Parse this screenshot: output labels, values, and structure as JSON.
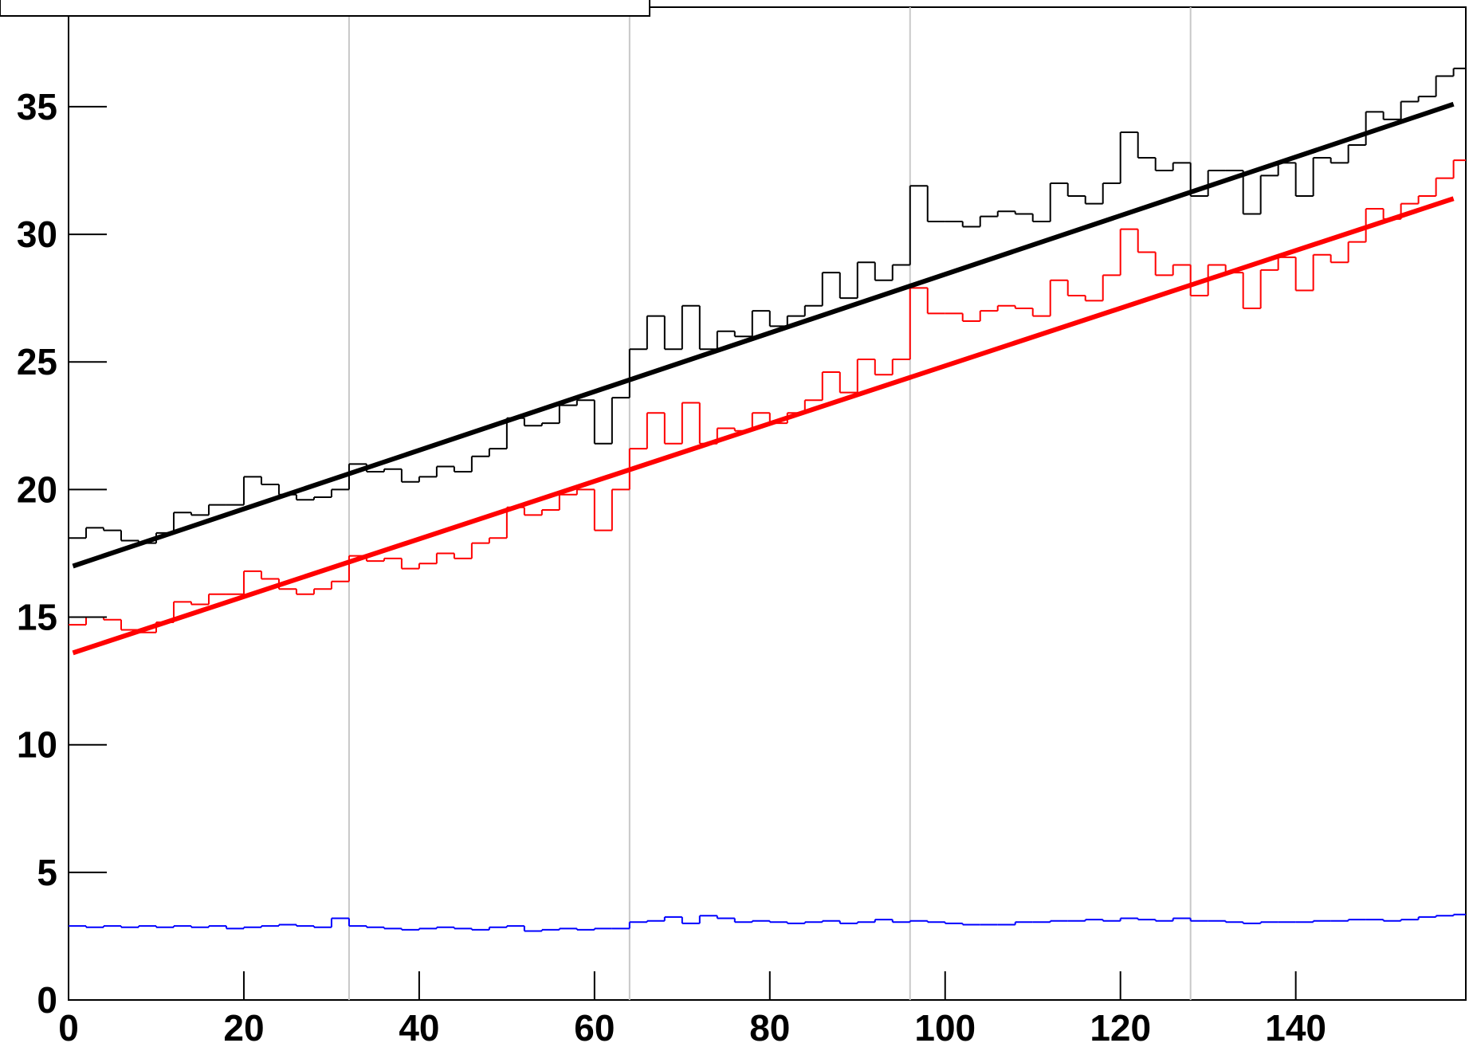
{
  "chart_data": {
    "type": "histogram",
    "bins": [
      0,
      2,
      4,
      6,
      8,
      10,
      12,
      14,
      16,
      18,
      20,
      22,
      24,
      26,
      28,
      30,
      32,
      34,
      36,
      38,
      40,
      42,
      44,
      46,
      48,
      50,
      52,
      54,
      56,
      58,
      60,
      62,
      64,
      66,
      68,
      70,
      72,
      74,
      76,
      78,
      80,
      82,
      84,
      86,
      88,
      90,
      92,
      94,
      96,
      98,
      100,
      102,
      104,
      106,
      108,
      110,
      112,
      114,
      116,
      118,
      120,
      122,
      124,
      126,
      128,
      130,
      132,
      134,
      136,
      138,
      140,
      142,
      144,
      146,
      148,
      150,
      152,
      154,
      156,
      158,
      160
    ],
    "series": [
      {
        "color": "#000000",
        "values": [
          18.1,
          18.5,
          18.4,
          18.0,
          17.9,
          18.3,
          19.1,
          19.0,
          19.4,
          19.4,
          20.5,
          20.2,
          19.8,
          19.6,
          19.7,
          20.0,
          21.0,
          20.7,
          20.8,
          20.3,
          20.5,
          20.9,
          20.7,
          21.3,
          21.6,
          22.8,
          22.5,
          22.6,
          23.3,
          23.5,
          21.8,
          23.6,
          25.5,
          26.8,
          25.5,
          27.2,
          25.5,
          26.2,
          26.0,
          27.0,
          26.4,
          26.8,
          27.2,
          28.5,
          27.5,
          28.9,
          28.2,
          28.8,
          31.9,
          30.5,
          30.5,
          30.3,
          30.7,
          30.9,
          30.8,
          30.5,
          32.0,
          31.5,
          31.2,
          32.0,
          34.0,
          33.0,
          32.5,
          32.8,
          31.5,
          32.5,
          32.5,
          30.8,
          32.3,
          32.8,
          31.5,
          33.0,
          32.8,
          33.5,
          34.8,
          34.5,
          35.2,
          35.4,
          36.2,
          36.5
        ]
      },
      {
        "color": "#ff0000",
        "values": [
          14.7,
          15.0,
          14.9,
          14.5,
          14.4,
          14.8,
          15.6,
          15.5,
          15.9,
          15.9,
          16.8,
          16.5,
          16.1,
          15.9,
          16.1,
          16.4,
          17.4,
          17.2,
          17.3,
          16.9,
          17.1,
          17.5,
          17.3,
          17.9,
          18.1,
          19.3,
          19.0,
          19.2,
          19.8,
          20.0,
          18.4,
          20.0,
          21.6,
          23.0,
          21.8,
          23.4,
          21.8,
          22.4,
          22.3,
          23.0,
          22.6,
          23.0,
          23.5,
          24.6,
          23.8,
          25.1,
          24.5,
          25.1,
          27.9,
          26.9,
          26.9,
          26.6,
          27.0,
          27.2,
          27.1,
          26.8,
          28.2,
          27.6,
          27.4,
          28.4,
          30.2,
          29.3,
          28.4,
          28.8,
          27.6,
          28.8,
          28.5,
          27.1,
          28.6,
          29.1,
          27.8,
          29.2,
          28.9,
          29.7,
          31.0,
          30.6,
          31.2,
          31.5,
          32.2,
          32.9
        ]
      },
      {
        "color": "#0000ff",
        "values": [
          2.9,
          2.85,
          2.9,
          2.85,
          2.9,
          2.85,
          2.9,
          2.85,
          2.9,
          2.8,
          2.85,
          2.9,
          2.95,
          2.9,
          2.85,
          3.2,
          2.9,
          2.85,
          2.8,
          2.75,
          2.8,
          2.85,
          2.8,
          2.75,
          2.85,
          2.9,
          2.7,
          2.75,
          2.8,
          2.75,
          2.8,
          2.8,
          3.05,
          3.1,
          3.25,
          3.0,
          3.3,
          3.2,
          3.05,
          3.1,
          3.05,
          3.0,
          3.05,
          3.1,
          3.0,
          3.05,
          3.15,
          3.05,
          3.1,
          3.05,
          3.0,
          2.95,
          2.95,
          2.95,
          3.05,
          3.05,
          3.1,
          3.1,
          3.15,
          3.1,
          3.2,
          3.15,
          3.1,
          3.2,
          3.1,
          3.1,
          3.05,
          3.0,
          3.05,
          3.05,
          3.05,
          3.1,
          3.1,
          3.15,
          3.15,
          3.1,
          3.15,
          3.25,
          3.3,
          3.35
        ]
      }
    ],
    "fits": [
      {
        "color": "#000000",
        "x": [
          0.5,
          158
        ],
        "values": [
          17.0,
          35.1
        ]
      },
      {
        "color": "#ff0000",
        "x": [
          0.5,
          158
        ],
        "values": [
          13.6,
          31.4
        ]
      }
    ],
    "xlim": [
      0,
      159.4
    ],
    "ylim": [
      0,
      38.9
    ],
    "xticks": [
      0,
      20,
      40,
      60,
      80,
      100,
      120,
      140
    ],
    "yticks": [
      0,
      5,
      10,
      15,
      20,
      25,
      30,
      35
    ],
    "xgrid": [
      32,
      64,
      96,
      128
    ]
  }
}
